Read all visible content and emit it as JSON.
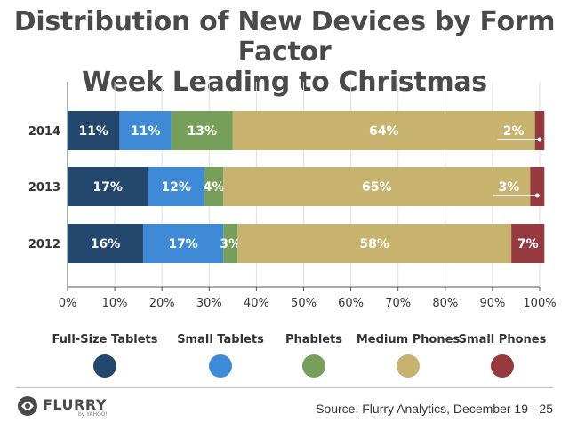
{
  "chart_data": {
    "type": "bar",
    "orientation": "horizontal",
    "stacked": true,
    "title": "Distribution of New Devices by Form Factor",
    "subtitle": "Week Leading to Christmas",
    "xlabel": "",
    "ylabel": "",
    "xlim": [
      0,
      100
    ],
    "x_ticks": [
      "0%",
      "10%",
      "20%",
      "30%",
      "40%",
      "50%",
      "60%",
      "70%",
      "80%",
      "90%",
      "100%"
    ],
    "categories": [
      "2014",
      "2013",
      "2012"
    ],
    "series": [
      {
        "name": "Full-Size Tablets",
        "color": "#24476e",
        "values": [
          11,
          17,
          16
        ],
        "labels": [
          "11%",
          "17%",
          "16%"
        ]
      },
      {
        "name": "Small Tablets",
        "color": "#3f8ad6",
        "values": [
          11,
          12,
          17
        ],
        "labels": [
          "11%",
          "12%",
          "17%"
        ]
      },
      {
        "name": "Phablets",
        "color": "#76a05a",
        "values": [
          13,
          4,
          3
        ],
        "labels": [
          "13%",
          "4%",
          "3%"
        ]
      },
      {
        "name": "Medium Phones",
        "color": "#c7b26e",
        "values": [
          64,
          65,
          58
        ],
        "labels": [
          "64%",
          "65%",
          "58%"
        ]
      },
      {
        "name": "Small Phones",
        "color": "#963a3f",
        "values": [
          2,
          3,
          7
        ],
        "labels": [
          "2%",
          "3%",
          "7%"
        ]
      }
    ],
    "grid": true,
    "legend": "bottom"
  },
  "footer": {
    "logo_text": "FLURRY",
    "logo_sub": "by YAHOO!",
    "source": "Source: Flurry Analytics, December 19 - 25"
  }
}
